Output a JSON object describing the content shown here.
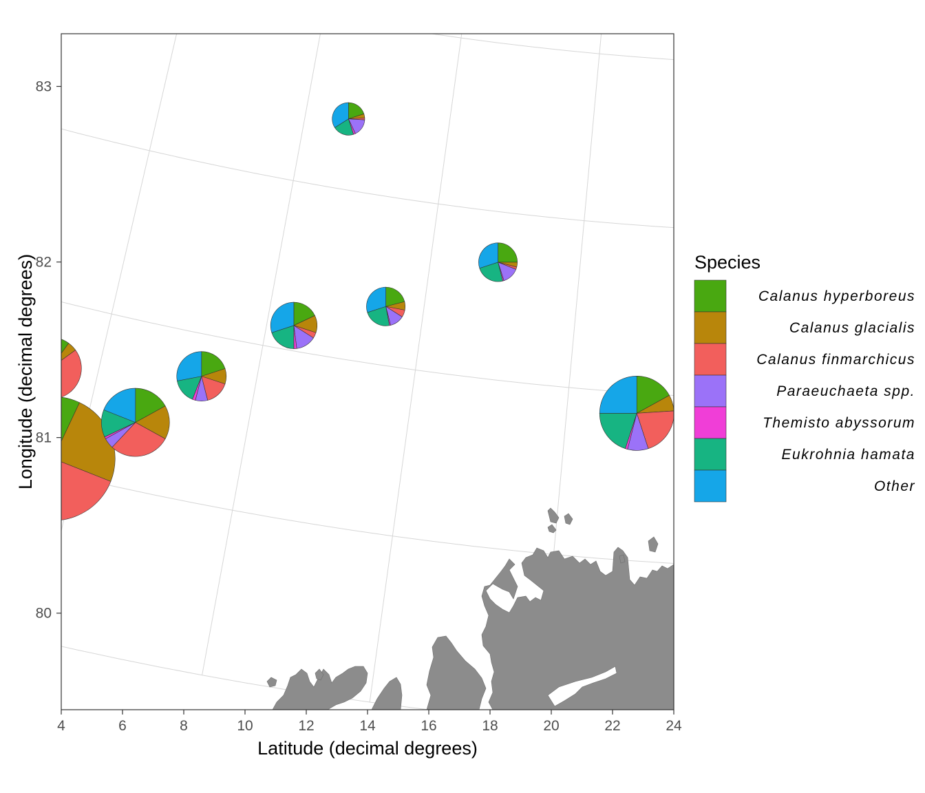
{
  "chart_data": {
    "type": "pie",
    "subtype": "pie charts on polar-stereographic map",
    "xlabel": "Latitude (decimal degrees)",
    "ylabel": "Longitude (decimal degrees)",
    "xlim": [
      4,
      24
    ],
    "ylim": [
      79.45,
      83.3
    ],
    "x_ticks": [
      "4",
      "6",
      "8",
      "10",
      "12",
      "14",
      "16",
      "18",
      "20",
      "22",
      "24"
    ],
    "y_ticks": [
      "80",
      "81",
      "82",
      "83"
    ],
    "grid": true,
    "land_color": "#8c8c8c",
    "legend": {
      "title": "Species",
      "position": "right",
      "entries": [
        {
          "label": "Calanus hyperboreus",
          "color": "#49A811"
        },
        {
          "label": "Calanus glacialis",
          "color": "#B8860B"
        },
        {
          "label": "Calanus finmarchicus",
          "color": "#F25F5C"
        },
        {
          "label": "Paraeuchaeta spp.",
          "color": "#9B72F8"
        },
        {
          "label": "Themisto abyssorum",
          "color": "#F03ED7"
        },
        {
          "label": "Eukrohnia hamata",
          "color": "#17B482"
        },
        {
          "label": "Other",
          "color": "#15A6E8"
        }
      ]
    },
    "stations": [
      {
        "lon": 7.7,
        "lat": 80.08,
        "size": 4.0,
        "values": [
          0.07,
          0.24,
          0.53,
          0.01,
          0.015,
          0.04,
          0.095
        ]
      },
      {
        "lon": 7.4,
        "lat": 80.6,
        "size": 2.0,
        "values": [
          0.1,
          0.05,
          0.33,
          0.1,
          0.01,
          0.12,
          0.29
        ]
      },
      {
        "lon": 8.6,
        "lat": 80.4,
        "size": 2.2,
        "values": [
          0.17,
          0.16,
          0.29,
          0.05,
          0.01,
          0.13,
          0.19
        ]
      },
      {
        "lon": 9.3,
        "lat": 80.75,
        "size": 1.6,
        "values": [
          0.2,
          0.1,
          0.16,
          0.08,
          0.02,
          0.16,
          0.28
        ]
      },
      {
        "lon": 10.35,
        "lat": 81.15,
        "size": 1.5,
        "values": [
          0.18,
          0.12,
          0.04,
          0.14,
          0.02,
          0.2,
          0.3
        ]
      },
      {
        "lon": 11.5,
        "lat": 81.35,
        "size": 1.25,
        "values": [
          0.21,
          0.07,
          0.06,
          0.12,
          0.01,
          0.23,
          0.3
        ]
      },
      {
        "lon": 12.9,
        "lat": 81.7,
        "size": 1.25,
        "values": [
          0.25,
          0.04,
          0.02,
          0.14,
          0.01,
          0.24,
          0.3
        ]
      },
      {
        "lon": 14.9,
        "lat": 80.88,
        "size": 2.4,
        "values": [
          0.17,
          0.07,
          0.21,
          0.09,
          0.01,
          0.2,
          0.25
        ]
      },
      {
        "lon": 10.6,
        "lat": 82.42,
        "size": 1.05,
        "values": [
          0.2,
          0.04,
          0.02,
          0.17,
          0.02,
          0.21,
          0.34
        ]
      },
      {
        "lon": 18.45,
        "lat": 81.42,
        "size": 0.72,
        "values": [
          0.13,
          0.08,
          0.05,
          0.13,
          0.02,
          0.26,
          0.33
        ]
      },
      {
        "lon": 17.85,
        "lat": 82.06,
        "size": 0.45,
        "values": [
          0.38,
          0.07,
          0.03,
          0.07,
          0.07,
          0.08,
          0.3
        ]
      },
      {
        "lon": 19.6,
        "lat": 81.93,
        "size": 0.55,
        "values": [
          0.36,
          0.07,
          0.02,
          0.1,
          0.03,
          0.15,
          0.27
        ]
      },
      {
        "lon": 20.3,
        "lat": 83.04,
        "size": 0.72,
        "values": [
          0.27,
          0.08,
          0.03,
          0.17,
          0.05,
          0.1,
          0.3
        ]
      }
    ]
  }
}
